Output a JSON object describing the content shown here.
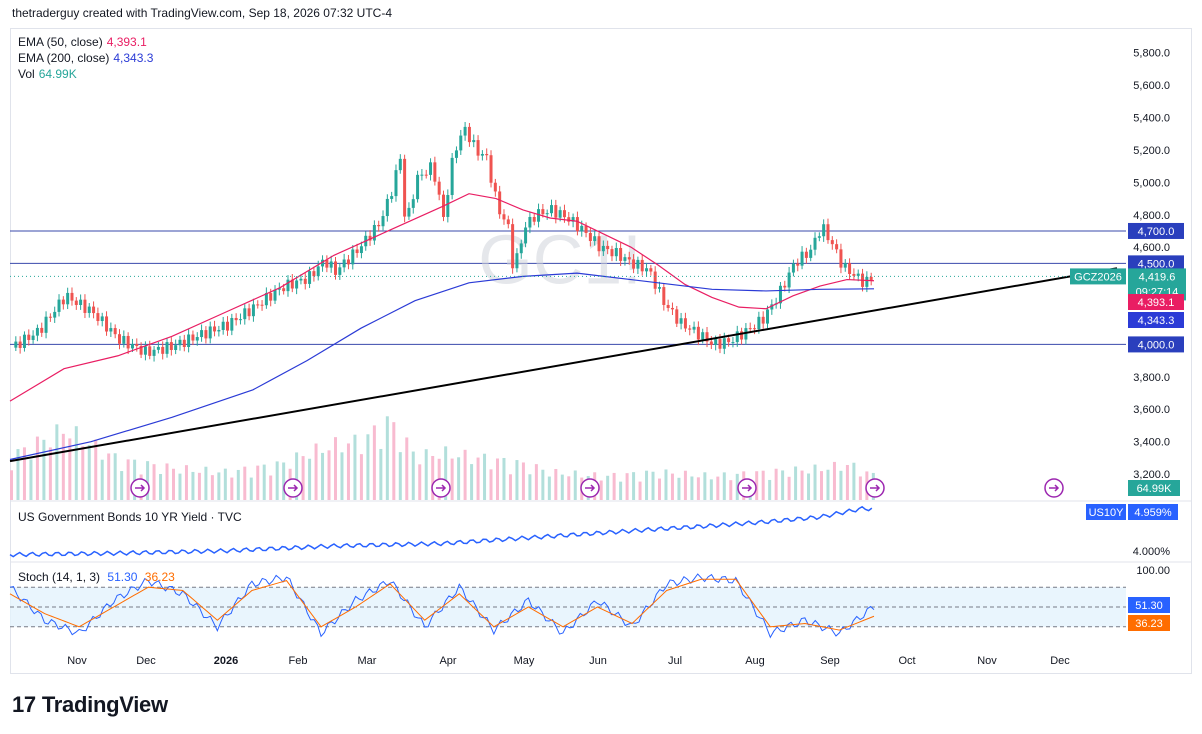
{
  "header": {
    "text": "thetraderguy created with TradingView.com, Sep 18, 2026 07:32 UTC-4"
  },
  "legend": {
    "ema50": {
      "label": "EMA (50, close)",
      "value": "4,393.1",
      "color": "#e91e63"
    },
    "ema200": {
      "label": "EMA (200, close)",
      "value": "4,343.3",
      "color": "#2b3bd6"
    },
    "vol": {
      "label": "Vol",
      "value": "64.99K",
      "color": "#26a69a"
    }
  },
  "watermark": "GC1!",
  "symbol_tag": {
    "label": "GCZ2026",
    "price": "4,419.6",
    "countdown": "09:27:14"
  },
  "bond": {
    "label": "US Government Bonds 10 YR Yield · TVC",
    "tag": "US10Y",
    "value": "4.959%",
    "axis_label": "4.000%"
  },
  "stoch": {
    "label": "Stoch (14, 1, 3)",
    "k_value": "51.30",
    "d_value": "36.23",
    "axis_top": "100.00"
  },
  "brand": {
    "logo": "17",
    "name": "TradingView"
  },
  "chart_data": {
    "type": "candlestick",
    "y_ticks": [
      "5,800.0",
      "5,600.0",
      "5,400.0",
      "5,200.0",
      "5,000.0",
      "4,800.0",
      "4,600.0",
      "3,800.0",
      "3,600.0",
      "3,400.0",
      "3,200.0"
    ],
    "y_tick_values": [
      5800,
      5600,
      5400,
      5200,
      5000,
      4800,
      4600,
      3800,
      3600,
      3400,
      3200
    ],
    "ylim": [
      3040,
      5940
    ],
    "x_labels": [
      "Nov",
      "Dec",
      "2026",
      "Feb",
      "Mar",
      "Apr",
      "May",
      "Jun",
      "Jul",
      "Aug",
      "Sep",
      "Oct",
      "Nov",
      "Dec"
    ],
    "horizontal_levels": [
      {
        "label": "4,700.0",
        "value": 4700
      },
      {
        "label": "4,500.0",
        "value": 4500
      },
      {
        "label": "4,000.0",
        "value": 4000
      }
    ],
    "price_tags": [
      {
        "label": "4,393.1",
        "value": 4393.1,
        "color": "#e91e63"
      },
      {
        "label": "4,343.3",
        "value": 4343.3,
        "color": "#2b3bd6"
      }
    ],
    "volume_tag": "64.99K",
    "close_path": [
      [
        0,
        3980
      ],
      [
        5,
        4080
      ],
      [
        10,
        4300
      ],
      [
        15,
        4200
      ],
      [
        20,
        4030
      ],
      [
        25,
        3950
      ],
      [
        30,
        3990
      ],
      [
        35,
        4060
      ],
      [
        40,
        4120
      ],
      [
        45,
        4230
      ],
      [
        50,
        4350
      ],
      [
        55,
        4410
      ],
      [
        58,
        4520
      ],
      [
        60,
        4450
      ],
      [
        64,
        4580
      ],
      [
        68,
        4740
      ],
      [
        70,
        4900
      ],
      [
        72,
        5150
      ],
      [
        73,
        4720
      ],
      [
        75,
        5020
      ],
      [
        78,
        5100
      ],
      [
        80,
        4780
      ],
      [
        82,
        5200
      ],
      [
        84,
        5330
      ],
      [
        86,
        5200
      ],
      [
        88,
        5150
      ],
      [
        90,
        4850
      ],
      [
        92,
        4720
      ],
      [
        93,
        4450
      ],
      [
        95,
        4720
      ],
      [
        97,
        4800
      ],
      [
        100,
        4830
      ],
      [
        103,
        4780
      ],
      [
        106,
        4700
      ],
      [
        109,
        4600
      ],
      [
        112,
        4560
      ],
      [
        115,
        4500
      ],
      [
        118,
        4460
      ],
      [
        121,
        4250
      ],
      [
        124,
        4130
      ],
      [
        127,
        4070
      ],
      [
        130,
        4000
      ],
      [
        133,
        4020
      ],
      [
        136,
        4080
      ],
      [
        139,
        4150
      ],
      [
        142,
        4300
      ],
      [
        145,
        4500
      ],
      [
        148,
        4580
      ],
      [
        150,
        4730
      ],
      [
        152,
        4620
      ],
      [
        154,
        4480
      ],
      [
        156,
        4430
      ],
      [
        158,
        4380
      ],
      [
        160,
        4420
      ]
    ],
    "ema50_path": [
      [
        0,
        3650
      ],
      [
        10,
        3850
      ],
      [
        20,
        3930
      ],
      [
        30,
        4050
      ],
      [
        40,
        4200
      ],
      [
        50,
        4350
      ],
      [
        60,
        4550
      ],
      [
        70,
        4700
      ],
      [
        80,
        4850
      ],
      [
        85,
        4930
      ],
      [
        90,
        4900
      ],
      [
        95,
        4830
      ],
      [
        100,
        4780
      ],
      [
        105,
        4760
      ],
      [
        110,
        4680
      ],
      [
        115,
        4600
      ],
      [
        120,
        4490
      ],
      [
        125,
        4370
      ],
      [
        130,
        4290
      ],
      [
        135,
        4230
      ],
      [
        140,
        4220
      ],
      [
        145,
        4300
      ],
      [
        150,
        4360
      ],
      [
        155,
        4400
      ],
      [
        160,
        4393
      ]
    ],
    "ema200_path": [
      [
        0,
        3290
      ],
      [
        15,
        3400
      ],
      [
        30,
        3550
      ],
      [
        45,
        3720
      ],
      [
        55,
        3900
      ],
      [
        65,
        4100
      ],
      [
        75,
        4270
      ],
      [
        85,
        4380
      ],
      [
        95,
        4420
      ],
      [
        105,
        4440
      ],
      [
        110,
        4420
      ],
      [
        120,
        4380
      ],
      [
        130,
        4340
      ],
      [
        140,
        4330
      ],
      [
        150,
        4340
      ],
      [
        160,
        4343
      ]
    ],
    "trendline": [
      [
        0,
        3280
      ],
      [
        205,
        4470
      ]
    ],
    "volume_path": [
      [
        0,
        0.55
      ],
      [
        10,
        0.9
      ],
      [
        20,
        0.5
      ],
      [
        30,
        0.4
      ],
      [
        40,
        0.35
      ],
      [
        50,
        0.45
      ],
      [
        55,
        0.6
      ],
      [
        60,
        0.7
      ],
      [
        65,
        0.75
      ],
      [
        70,
        1.0
      ],
      [
        75,
        0.55
      ],
      [
        80,
        0.6
      ],
      [
        85,
        0.55
      ],
      [
        90,
        0.5
      ],
      [
        95,
        0.45
      ],
      [
        100,
        0.35
      ],
      [
        110,
        0.3
      ],
      [
        120,
        0.35
      ],
      [
        130,
        0.3
      ],
      [
        140,
        0.35
      ],
      [
        150,
        0.4
      ],
      [
        155,
        0.45
      ],
      [
        160,
        0.3
      ]
    ],
    "bond_path": [
      [
        0,
        4.02
      ],
      [
        20,
        4.05
      ],
      [
        40,
        4.1
      ],
      [
        60,
        4.2
      ],
      [
        80,
        4.25
      ],
      [
        100,
        4.4
      ],
      [
        120,
        4.55
      ],
      [
        130,
        4.62
      ],
      [
        140,
        4.7
      ],
      [
        150,
        4.8
      ],
      [
        158,
        4.98
      ],
      [
        160,
        4.96
      ]
    ],
    "stoch_k": [
      [
        0,
        80
      ],
      [
        5,
        30
      ],
      [
        10,
        10
      ],
      [
        15,
        60
      ],
      [
        20,
        90
      ],
      [
        25,
        70
      ],
      [
        30,
        20
      ],
      [
        35,
        85
      ],
      [
        40,
        95
      ],
      [
        45,
        10
      ],
      [
        50,
        60
      ],
      [
        55,
        90
      ],
      [
        60,
        20
      ],
      [
        65,
        80
      ],
      [
        70,
        15
      ],
      [
        75,
        60
      ],
      [
        80,
        10
      ],
      [
        85,
        60
      ],
      [
        90,
        20
      ],
      [
        95,
        85
      ],
      [
        100,
        95
      ],
      [
        105,
        90
      ],
      [
        110,
        10
      ],
      [
        115,
        30
      ],
      [
        120,
        10
      ],
      [
        125,
        51
      ]
    ],
    "stoch_d": [
      [
        0,
        70
      ],
      [
        5,
        40
      ],
      [
        10,
        20
      ],
      [
        15,
        50
      ],
      [
        20,
        80
      ],
      [
        25,
        75
      ],
      [
        30,
        30
      ],
      [
        35,
        75
      ],
      [
        40,
        90
      ],
      [
        45,
        20
      ],
      [
        50,
        50
      ],
      [
        55,
        85
      ],
      [
        60,
        30
      ],
      [
        65,
        70
      ],
      [
        70,
        20
      ],
      [
        75,
        50
      ],
      [
        80,
        20
      ],
      [
        85,
        50
      ],
      [
        90,
        25
      ],
      [
        95,
        75
      ],
      [
        100,
        92
      ],
      [
        105,
        92
      ],
      [
        110,
        20
      ],
      [
        115,
        25
      ],
      [
        120,
        15
      ],
      [
        125,
        36
      ]
    ]
  }
}
